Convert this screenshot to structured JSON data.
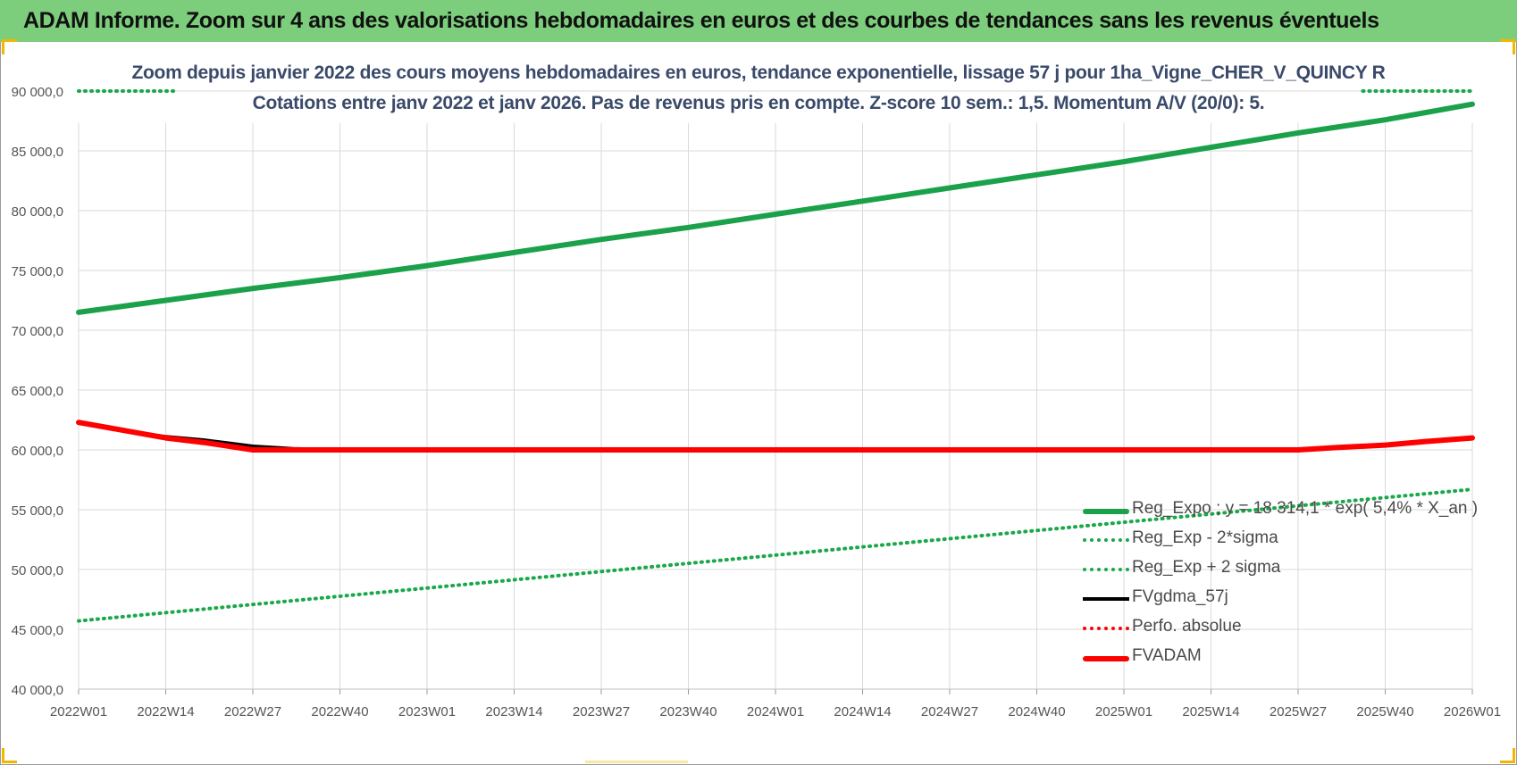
{
  "banner": {
    "title": "ADAM Informe. Zoom sur 4 ans des valorisations hebdomadaires en euros et des courbes de tendances sans les revenus éventuels"
  },
  "colors": {
    "banner_bg": "#7ccd7c",
    "trend_green": "#1aa14a",
    "band_green": "#19a84a",
    "gdma_black": "#000000",
    "fvadam_red": "#ff0000",
    "grid": "#d9d9d9",
    "corner_accent": "#f2b705"
  },
  "chart_data": {
    "type": "line",
    "title": "Zoom depuis janvier 2022 des cours moyens hebdomadaires en euros, tendance exponentielle, lissage 57 j pour 1ha_Vigne_CHER_V_QUINCY R",
    "subtitle": "Cotations entre janv 2022 et janv 2026. Pas de revenus pris en compte. Z-score 10 sem.: 1,5. Momentum A/V (20/0): 5.",
    "xlabel": "",
    "ylabel": "",
    "ylim": [
      40000,
      90000
    ],
    "grid": true,
    "legend_position": "bottom-right",
    "x_ticks": [
      "2022W01",
      "2022W14",
      "2022W27",
      "2022W40",
      "2023W01",
      "2023W14",
      "2023W27",
      "2023W40",
      "2024W01",
      "2024W14",
      "2024W27",
      "2024W40",
      "2025W01",
      "2025W14",
      "2025W27",
      "2025W40",
      "2026W01"
    ],
    "y_ticks": [
      "40 000,0",
      "45 000,0",
      "50 000,0",
      "55 000,0",
      "60 000,0",
      "65 000,0",
      "70 000,0",
      "75 000,0",
      "80 000,0",
      "85 000,0",
      "90 000,0"
    ],
    "series": [
      {
        "name": "Reg_Expo ; y = 18 314,1 * exp( 5,4% *  X_an )",
        "style": "solid-thick",
        "color": "#1aa14a",
        "x": [
          "2022W01",
          "2022W14",
          "2022W27",
          "2022W40",
          "2023W01",
          "2023W14",
          "2023W27",
          "2023W40",
          "2024W01",
          "2024W14",
          "2024W27",
          "2024W40",
          "2025W01",
          "2025W14",
          "2025W27",
          "2025W40",
          "2026W01"
        ],
        "values": [
          71500,
          72500,
          73500,
          74400,
          75400,
          76500,
          77600,
          78600,
          79700,
          80800,
          81900,
          83000,
          84100,
          85300,
          86500,
          87600,
          88900
        ]
      },
      {
        "name": "Reg_Exp - 2*sigma",
        "style": "dotted",
        "color": "#19a84a",
        "x": [
          "2022W01",
          "2026W01"
        ],
        "values": [
          45700,
          56700
        ]
      },
      {
        "name": "Reg_Exp + 2 sigma",
        "style": "dotted",
        "color": "#19a84a",
        "x": [
          "2022W01",
          "2022W14",
          "2026W01"
        ],
        "values": [
          90000,
          90000,
          90000
        ],
        "note_visible_segments": "drawn near top edge at left and right ends only"
      },
      {
        "name": "FVgdma_57j",
        "style": "solid",
        "color": "#000000",
        "x": [
          "2022W01",
          "2022W07",
          "2022W14",
          "2022W20",
          "2022W27",
          "2022W33",
          "2022W40",
          "2025W27",
          "2025W33",
          "2025W40",
          "2025W46",
          "2026W01"
        ],
        "values": [
          62300,
          61700,
          61100,
          60800,
          60300,
          60100,
          60000,
          60000,
          60200,
          60400,
          60700,
          61000
        ]
      },
      {
        "name": "Perfo. absolue",
        "style": "dotted",
        "color": "#ff0000",
        "x": [],
        "values": []
      },
      {
        "name": "FVADAM",
        "style": "solid-thick",
        "color": "#ff0000",
        "x": [
          "2022W01",
          "2022W07",
          "2022W14",
          "2022W20",
          "2022W27",
          "2022W33",
          "2022W40",
          "2025W27",
          "2025W33",
          "2025W40",
          "2025W46",
          "2026W01"
        ],
        "values": [
          62300,
          61700,
          61000,
          60600,
          60000,
          60000,
          60000,
          60000,
          60200,
          60400,
          60700,
          61000
        ]
      }
    ]
  }
}
